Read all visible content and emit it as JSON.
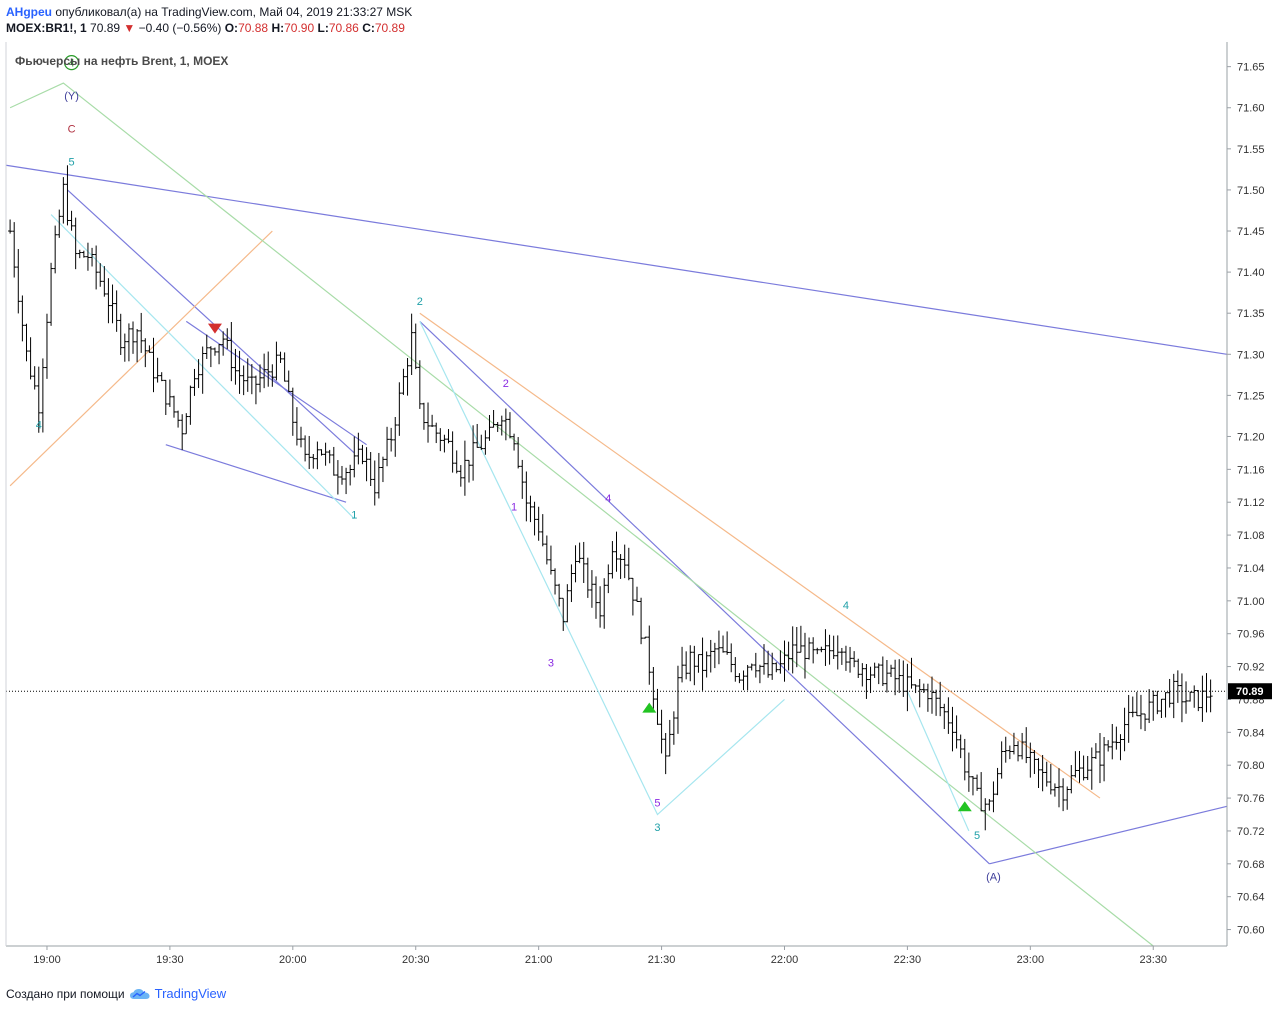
{
  "header": {
    "author": "AHgpeu",
    "published": "опубликовал(а) на TradingView.com, Май 04, 2019 21:33:27 MSK",
    "symbol": "MOEX:BR1!, 1",
    "last": "70.89",
    "change": "−0.40 (−0.56%)",
    "o_label": "O:",
    "o_value": "70.88",
    "h_label": "H:",
    "h_value": "70.90",
    "l_label": "L:",
    "l_value": "70.86",
    "c_label": "C:",
    "c_value": "70.89"
  },
  "chart_data": {
    "type": "candlestick",
    "title": "Фьючерсы на нефть Brent, 1, MOEX",
    "y_ticks": [
      "71.65",
      "71.60",
      "71.55",
      "71.50",
      "71.45",
      "71.40",
      "71.35",
      "71.30",
      "71.25",
      "71.20",
      "71.16",
      "71.12",
      "71.08",
      "71.04",
      "71.00",
      "70.96",
      "70.92",
      "70.88",
      "70.84",
      "70.80",
      "70.76",
      "70.72",
      "70.68",
      "70.64",
      "70.60"
    ],
    "x_ticks": [
      "19:00",
      "19:30",
      "20:00",
      "20:30",
      "21:00",
      "21:30",
      "22:00",
      "22:30",
      "23:00",
      "23:30"
    ],
    "ylim": [
      70.58,
      71.68
    ],
    "last_price": "70.89",
    "close_path": [
      [
        "18:51",
        71.45
      ],
      [
        "18:55",
        71.3
      ],
      [
        "18:58",
        71.24
      ],
      [
        "19:01",
        71.4
      ],
      [
        "19:04",
        71.5
      ],
      [
        "19:07",
        71.42
      ],
      [
        "19:10",
        71.42
      ],
      [
        "19:14",
        71.38
      ],
      [
        "19:18",
        71.32
      ],
      [
        "19:22",
        71.33
      ],
      [
        "19:26",
        71.28
      ],
      [
        "19:30",
        71.24
      ],
      [
        "19:33",
        71.21
      ],
      [
        "19:36",
        71.28
      ],
      [
        "19:40",
        71.31
      ],
      [
        "19:43",
        71.32
      ],
      [
        "19:46",
        71.28
      ],
      [
        "19:50",
        71.26
      ],
      [
        "19:54",
        71.28
      ],
      [
        "19:57",
        71.29
      ],
      [
        "20:00",
        71.22
      ],
      [
        "20:03",
        71.17
      ],
      [
        "20:06",
        71.19
      ],
      [
        "20:10",
        71.16
      ],
      [
        "20:14",
        71.16
      ],
      [
        "20:17",
        71.18
      ],
      [
        "20:20",
        71.14
      ],
      [
        "20:24",
        71.2
      ],
      [
        "20:27",
        71.27
      ],
      [
        "20:29",
        71.32
      ],
      [
        "20:31",
        71.23
      ],
      [
        "20:34",
        71.21
      ],
      [
        "20:38",
        71.19
      ],
      [
        "20:41",
        71.16
      ],
      [
        "20:44",
        71.18
      ],
      [
        "20:48",
        71.2
      ],
      [
        "20:51",
        71.23
      ],
      [
        "20:54",
        71.2
      ],
      [
        "20:57",
        71.12
      ],
      [
        "21:00",
        71.09
      ],
      [
        "21:03",
        71.03
      ],
      [
        "21:06",
        70.98
      ],
      [
        "21:09",
        71.06
      ],
      [
        "21:12",
        71.02
      ],
      [
        "21:15",
        70.99
      ],
      [
        "21:18",
        71.07
      ],
      [
        "21:21",
        71.05
      ],
      [
        "21:24",
        70.99
      ],
      [
        "21:27",
        70.92
      ],
      [
        "21:29",
        70.86
      ],
      [
        "21:31",
        70.8
      ],
      [
        "21:34",
        70.9
      ],
      [
        "21:37",
        70.93
      ],
      [
        "21:40",
        70.92
      ],
      [
        "21:43",
        70.94
      ],
      [
        "21:46",
        70.93
      ],
      [
        "21:49",
        70.91
      ],
      [
        "21:52",
        70.93
      ],
      [
        "21:56",
        70.91
      ],
      [
        "21:59",
        70.92
      ],
      [
        "22:02",
        70.94
      ],
      [
        "22:05",
        70.94
      ],
      [
        "22:08",
        70.93
      ],
      [
        "22:11",
        70.94
      ],
      [
        "22:14",
        70.95
      ],
      [
        "22:16",
        70.92
      ],
      [
        "22:19",
        70.92
      ],
      [
        "22:22",
        70.91
      ],
      [
        "22:25",
        70.91
      ],
      [
        "22:29",
        70.9
      ],
      [
        "22:32",
        70.89
      ],
      [
        "22:35",
        70.89
      ],
      [
        "22:38",
        70.87
      ],
      [
        "22:41",
        70.85
      ],
      [
        "22:44",
        70.8
      ],
      [
        "22:47",
        70.76
      ],
      [
        "22:50",
        70.75
      ],
      [
        "22:53",
        70.81
      ],
      [
        "22:56",
        70.83
      ],
      [
        "22:59",
        70.81
      ],
      [
        "23:02",
        70.79
      ],
      [
        "23:05",
        70.78
      ],
      [
        "23:08",
        70.77
      ],
      [
        "23:11",
        70.79
      ],
      [
        "23:14",
        70.8
      ],
      [
        "23:17",
        70.81
      ],
      [
        "23:20",
        70.83
      ],
      [
        "23:23",
        70.85
      ],
      [
        "23:26",
        70.86
      ],
      [
        "23:29",
        70.87
      ],
      [
        "23:32",
        70.88
      ],
      [
        "23:35",
        70.89
      ],
      [
        "23:38",
        70.88
      ],
      [
        "23:41",
        70.88
      ],
      [
        "23:44",
        70.89
      ]
    ],
    "trend_lines": [
      {
        "color": "#7b7bdc",
        "points": [
          [
            "18:50",
            71.53
          ],
          [
            "23:48",
            71.3
          ]
        ]
      },
      {
        "color": "#7b7bdc",
        "points": [
          [
            "19:05",
            71.5
          ],
          [
            "20:15",
            71.18
          ]
        ]
      },
      {
        "color": "#7b7bdc",
        "points": [
          [
            "19:29",
            71.19
          ],
          [
            "20:13",
            71.12
          ]
        ]
      },
      {
        "color": "#7b7bdc",
        "points": [
          [
            "19:34",
            71.34
          ],
          [
            "20:18",
            71.19
          ]
        ]
      },
      {
        "color": "#7b7bdc",
        "points": [
          [
            "20:31",
            71.34
          ],
          [
            "22:50",
            70.68
          ]
        ]
      },
      {
        "color": "#7b7bdc",
        "points": [
          [
            "22:50",
            70.68
          ],
          [
            "23:48",
            70.75
          ]
        ]
      },
      {
        "color": "#f5b98a",
        "points": [
          [
            "18:51",
            71.14
          ],
          [
            "19:55",
            71.45
          ]
        ]
      },
      {
        "color": "#f5b98a",
        "points": [
          [
            "20:31",
            71.35
          ],
          [
            "23:17",
            70.76
          ]
        ]
      },
      {
        "color": "#a8dca8",
        "points": [
          [
            "18:51",
            71.6
          ],
          [
            "19:04",
            71.63
          ],
          [
            "23:30",
            70.58
          ]
        ]
      },
      {
        "color": "#a6e6ef",
        "points": [
          [
            "19:01",
            71.47
          ],
          [
            "20:15",
            71.1
          ]
        ]
      },
      {
        "color": "#a6e6ef",
        "points": [
          [
            "20:31",
            71.34
          ],
          [
            "21:29",
            70.74
          ],
          [
            "22:00",
            70.88
          ]
        ]
      },
      {
        "color": "#a6e6ef",
        "points": [
          [
            "22:30",
            70.89
          ],
          [
            "22:45",
            70.72
          ]
        ]
      }
    ],
    "annotations": [
      {
        "text": "4",
        "time": "18:58",
        "price": 71.21,
        "color": "#20a0a8",
        "type": "label"
      },
      {
        "text": "5",
        "time": "19:06",
        "price": 71.53,
        "color": "#20a0a8",
        "type": "label"
      },
      {
        "text": "C",
        "time": "19:06",
        "price": 71.57,
        "color": "#b03040",
        "type": "label"
      },
      {
        "text": "(Y)",
        "time": "19:06",
        "price": 71.61,
        "color": "#3d3d99",
        "type": "label"
      },
      {
        "text": "4",
        "time": "19:06",
        "price": 71.65,
        "color": "#2a9d2a",
        "type": "circled"
      },
      {
        "text": "1",
        "time": "20:15",
        "price": 71.1,
        "color": "#20a0a8",
        "type": "label"
      },
      {
        "text": "2",
        "time": "20:31",
        "price": 71.36,
        "color": "#20a0a8",
        "type": "label"
      },
      {
        "text": "2",
        "time": "20:52",
        "price": 71.26,
        "color": "#8a2be2",
        "type": "label"
      },
      {
        "text": "1",
        "time": "20:54",
        "price": 71.11,
        "color": "#8a2be2",
        "type": "label"
      },
      {
        "text": "4",
        "time": "21:17",
        "price": 71.12,
        "color": "#8a2be2",
        "type": "label"
      },
      {
        "text": "3",
        "time": "21:03",
        "price": 70.92,
        "color": "#8a2be2",
        "type": "label"
      },
      {
        "text": "5",
        "time": "21:29",
        "price": 70.75,
        "color": "#8a2be2",
        "type": "label"
      },
      {
        "text": "3",
        "time": "21:29",
        "price": 70.72,
        "color": "#20a0a8",
        "type": "label"
      },
      {
        "text": "4",
        "time": "22:15",
        "price": 70.99,
        "color": "#20a0a8",
        "type": "label"
      },
      {
        "text": "5",
        "time": "22:47",
        "price": 70.71,
        "color": "#20a0a8",
        "type": "label"
      },
      {
        "text": "(A)",
        "time": "22:51",
        "price": 70.66,
        "color": "#3d3d99",
        "type": "label"
      }
    ],
    "markers": [
      {
        "time": "19:41",
        "price": 71.33,
        "dir": "down",
        "color": "#d32f2f"
      },
      {
        "time": "21:27",
        "price": 70.87,
        "dir": "up",
        "color": "#22c322"
      },
      {
        "time": "22:44",
        "price": 70.75,
        "dir": "up",
        "color": "#22c322"
      }
    ]
  },
  "footer": {
    "prefix": "Создано при помощи",
    "brand": "TradingView"
  }
}
